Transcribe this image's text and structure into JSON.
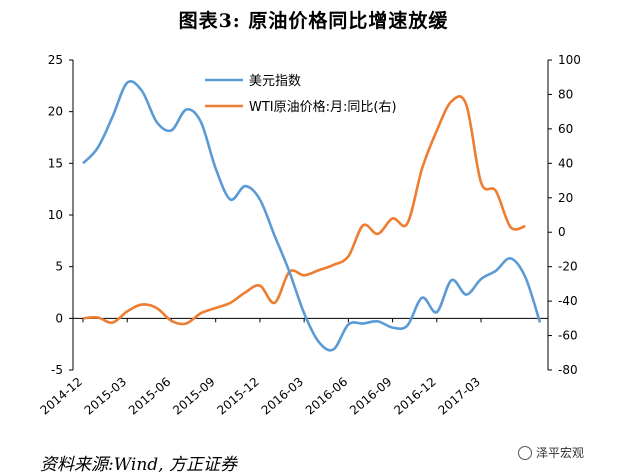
{
  "title": "图表3:  原油价格同比增速放缓",
  "source": "资料来源:Wind, 方正证券",
  "watermark": "泽平宏观",
  "colors": {
    "series1": "#5B9BD5",
    "series2": "#ED7D31"
  },
  "chart_data": {
    "type": "line",
    "x_ticks": [
      "2014-12",
      "2015-03",
      "2015-06",
      "2015-09",
      "2015-12",
      "2016-03",
      "2016-06",
      "2016-09",
      "2016-12",
      "2017-03"
    ],
    "y_left": {
      "ylim": [
        -5,
        25
      ],
      "ticks": [
        "-5",
        "0",
        "5",
        "10",
        "15",
        "20",
        "25"
      ]
    },
    "y_right": {
      "ylim": [
        -80,
        100
      ],
      "ticks": [
        "-80",
        "-60",
        "-40",
        "-20",
        "0",
        "20",
        "40",
        "60",
        "80",
        "100"
      ]
    },
    "grid": false,
    "legend_position": "top-center",
    "series": [
      {
        "name": "美元指数",
        "axis": "left",
        "values": [
          15.0,
          16.5,
          19.5,
          22.8,
          22.0,
          19.0,
          18.2,
          20.2,
          19.0,
          14.5,
          11.5,
          12.8,
          11.5,
          8.0,
          4.5,
          0.5,
          -2.3,
          -3.0,
          -0.6,
          -0.5,
          -0.3,
          -0.9,
          -0.7,
          2.0,
          0.6,
          3.7,
          2.3,
          3.8,
          4.6,
          5.8,
          4.0,
          -0.4
        ]
      },
      {
        "name": "WTI原油价格:月:同比(右)",
        "axis": "right",
        "values": [
          -50,
          -49.5,
          -52.5,
          -46,
          -42,
          -44,
          -51.5,
          -53,
          -47,
          -44,
          -41,
          -35,
          -31,
          -41,
          -23,
          -25,
          -22,
          -19,
          -14,
          4,
          -1,
          8,
          5,
          37,
          59,
          76,
          74,
          29,
          24,
          3,
          3.5
        ]
      }
    ]
  }
}
